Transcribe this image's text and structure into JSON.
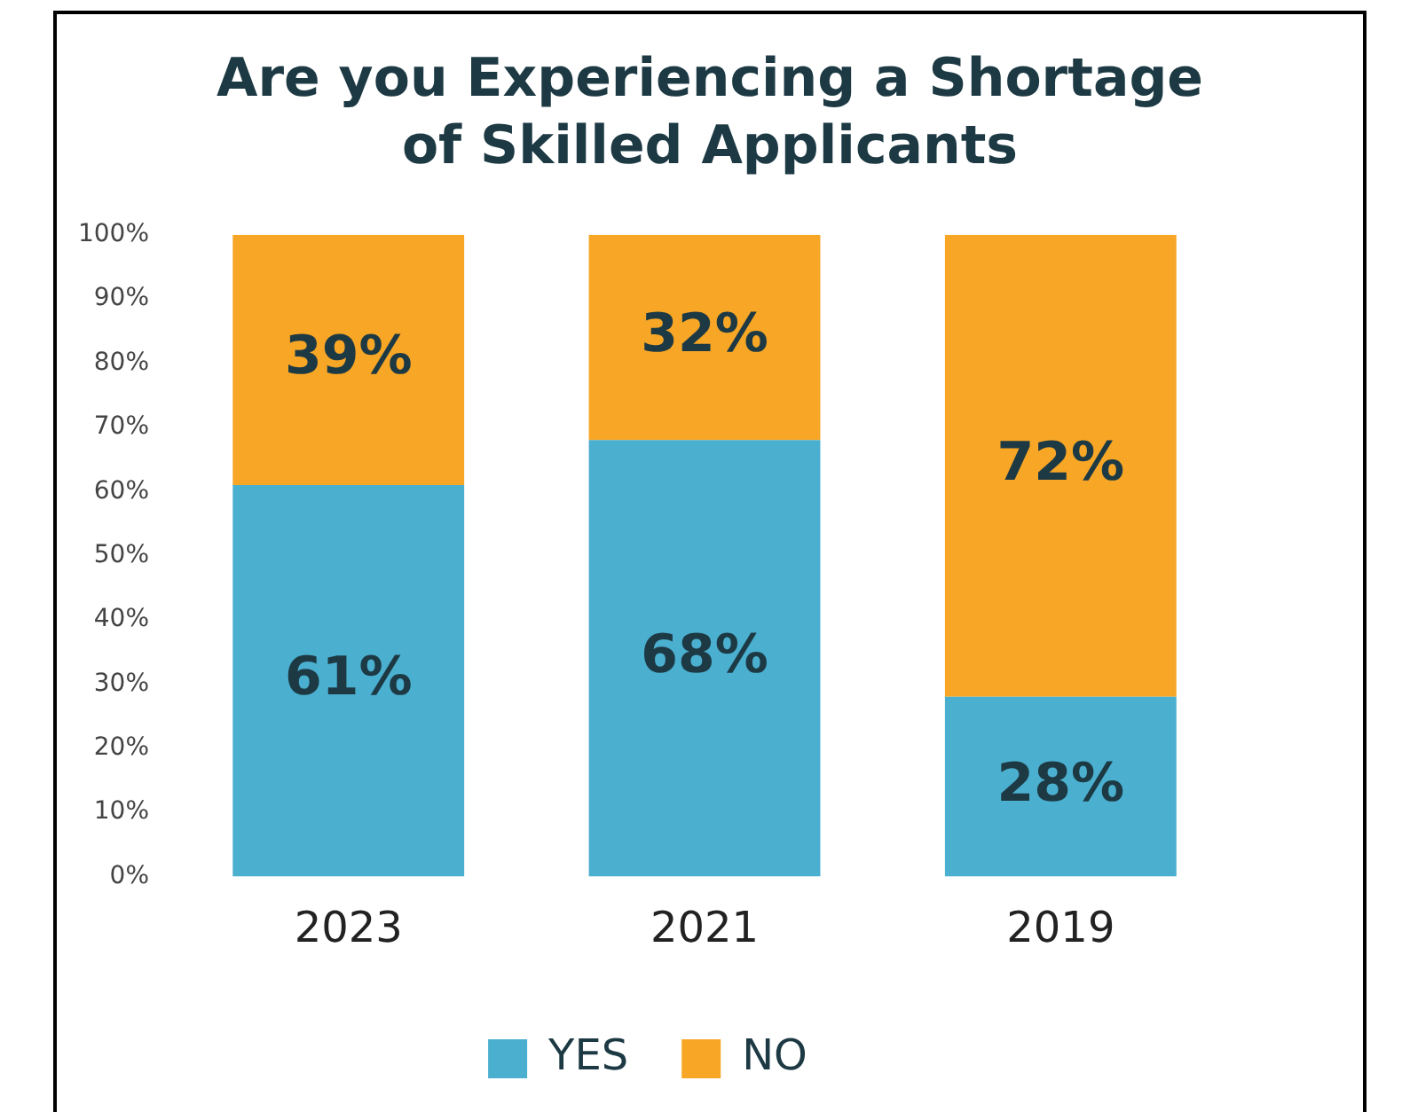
{
  "chart_data": {
    "type": "bar",
    "title": "Are you Experiencing a Shortage of Skilled Applicants",
    "categories": [
      "2023",
      "2021",
      "2019"
    ],
    "stacked": true,
    "grid": false,
    "legend": "bottom",
    "ylim": [
      0,
      100
    ],
    "yticks": [
      {
        "value": 0,
        "label": "0%"
      },
      {
        "value": 10,
        "label": "10%"
      },
      {
        "value": 20,
        "label": "20%"
      },
      {
        "value": 30,
        "label": "30%"
      },
      {
        "value": 40,
        "label": "40%"
      },
      {
        "value": 50,
        "label": "50%"
      },
      {
        "value": 60,
        "label": "60%"
      },
      {
        "value": 70,
        "label": "70%"
      },
      {
        "value": 80,
        "label": "80%"
      },
      {
        "value": 90,
        "label": "90%"
      },
      {
        "value": 100,
        "label": "100%"
      }
    ],
    "series": [
      {
        "name": "YES",
        "color": "#4bafd0",
        "values": [
          61,
          68,
          28
        ],
        "value_labels": [
          "61%",
          "68%",
          "28%"
        ]
      },
      {
        "name": "NO",
        "color": "#f7a626",
        "values": [
          39,
          32,
          72
        ],
        "value_labels": [
          "39%",
          "32%",
          "72%"
        ]
      }
    ]
  }
}
